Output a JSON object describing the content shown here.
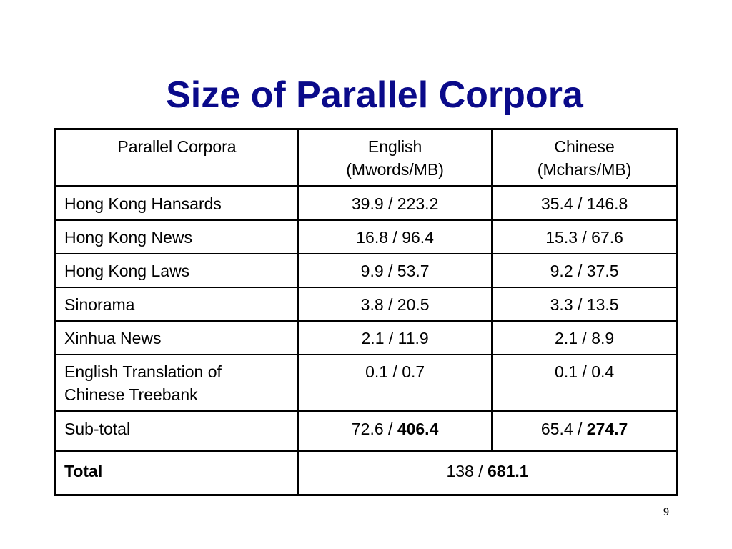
{
  "slide": {
    "title": "Size of Parallel Corpora",
    "page_number": "9"
  },
  "table": {
    "headers": {
      "col1": "Parallel Corpora",
      "col2_line1": "English",
      "col2_line2": "(Mwords/MB)",
      "col3_line1": "Chinese",
      "col3_line2": "(Mchars/MB)"
    },
    "rows": [
      {
        "name": "Hong Kong Hansards",
        "english": "39.9 / 223.2",
        "chinese": "35.4 / 146.8"
      },
      {
        "name": "Hong Kong News",
        "english": "16.8 / 96.4",
        "chinese": "15.3 / 67.6"
      },
      {
        "name": "Hong Kong Laws",
        "english": "9.9 / 53.7",
        "chinese": "9.2 / 37.5"
      },
      {
        "name": "Sinorama",
        "english": "3.8 / 20.5",
        "chinese": "3.3 / 13.5"
      },
      {
        "name": "Xinhua News",
        "english": "2.1 / 11.9",
        "chinese": "2.1 / 8.9"
      },
      {
        "name_line1": "English Translation of",
        "name_line2": "Chinese Treebank",
        "english": "0.1 / 0.7",
        "chinese": "0.1 / 0.4"
      }
    ],
    "subtotal": {
      "label": "Sub-total",
      "english_prefix": "72.6 / ",
      "english_bold": "406.4",
      "chinese_prefix": "65.4 / ",
      "chinese_bold": "274.7"
    },
    "total": {
      "label": "Total",
      "value_prefix": "138 / ",
      "value_bold": "681.1"
    }
  }
}
